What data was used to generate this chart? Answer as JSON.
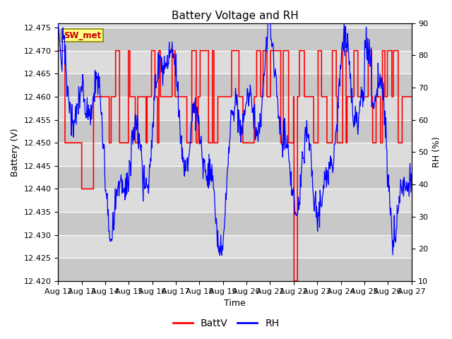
{
  "title": "Battery Voltage and RH",
  "xlabel": "Time",
  "ylabel_left": "Battery (V)",
  "ylabel_right": "RH (%)",
  "station_label": "SW_met",
  "ylim_left": [
    12.42,
    12.476
  ],
  "ylim_right": [
    10,
    90
  ],
  "yticks_left": [
    12.42,
    12.425,
    12.43,
    12.435,
    12.44,
    12.445,
    12.45,
    12.455,
    12.46,
    12.465,
    12.47,
    12.475
  ],
  "yticks_right": [
    10,
    20,
    30,
    40,
    50,
    60,
    70,
    80,
    90
  ],
  "x_labels": [
    "Aug 12",
    "Aug 13",
    "Aug 14",
    "Aug 15",
    "Aug 16",
    "Aug 17",
    "Aug 18",
    "Aug 19",
    "Aug 20",
    "Aug 21",
    "Aug 22",
    "Aug 23",
    "Aug 24",
    "Aug 25",
    "Aug 26",
    "Aug 27"
  ],
  "batt_color": "#FF0000",
  "rh_color": "#0000FF",
  "bg_light": "#DCDCDC",
  "bg_dark": "#C8C8C8",
  "legend_batt": "BattV",
  "legend_rh": "RH",
  "grid_color": "#FFFFFF",
  "title_fontsize": 11,
  "label_fontsize": 9,
  "tick_fontsize": 8
}
